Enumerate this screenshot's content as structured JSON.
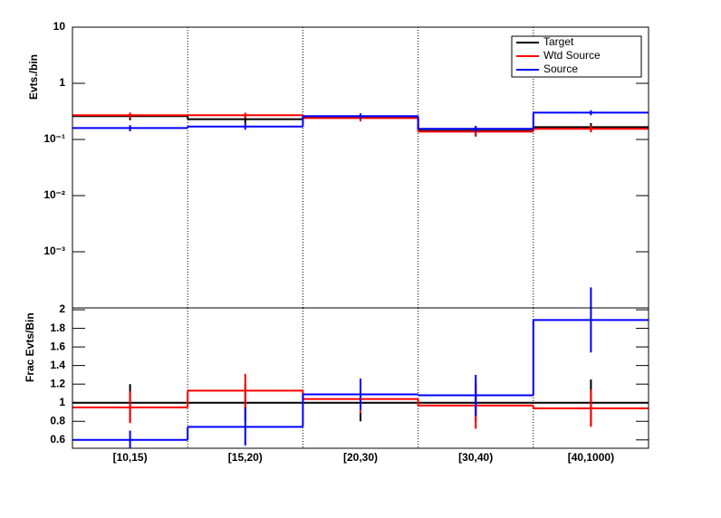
{
  "chart_data": [
    {
      "type": "step",
      "ylabel": "Evts./bin",
      "log_scale": true,
      "ylim": [
        0.0001,
        10
      ],
      "yticks": [
        {
          "value": 0.001,
          "label": "10⁻³"
        },
        {
          "value": 0.01,
          "label": "10⁻²"
        },
        {
          "value": 0.1,
          "label": "10⁻¹"
        },
        1,
        10
      ],
      "legend": "top-right",
      "grid": "x",
      "series": [
        {
          "name": "Target",
          "color": "#000000",
          "values": [
            0.26,
            0.23,
            0.25,
            0.143,
            0.166
          ],
          "errors": [
            0.04,
            0.04,
            0.04,
            0.03,
            0.03
          ]
        },
        {
          "name": "Wtd Source",
          "color": "#ff0000",
          "values": [
            0.27,
            0.27,
            0.24,
            0.138,
            0.155
          ],
          "errors": [
            0.03,
            0.03,
            0.03,
            0.02,
            0.02
          ]
        },
        {
          "name": "Source",
          "color": "#0000ff",
          "values": [
            0.16,
            0.17,
            0.26,
            0.155,
            0.3
          ],
          "errors": [
            0.02,
            0.02,
            0.03,
            0.02,
            0.03
          ]
        }
      ]
    },
    {
      "type": "step",
      "ylabel": "Frac Evts/Bin",
      "log_scale": false,
      "categories": [
        "[10,15)",
        "[15,20)",
        "[20,30)",
        "[30,40)",
        "[40,1000)"
      ],
      "ylim": [
        0.51,
        2.02
      ],
      "yticks": [
        0.6,
        0.8,
        1,
        1.2,
        1.4,
        1.6,
        1.8,
        2
      ],
      "grid": "x",
      "series": [
        {
          "color": "#000000",
          "values": [
            1,
            1,
            1,
            1,
            1
          ],
          "errors": [
            0.2,
            0.2,
            0.2,
            0.2,
            0.25
          ]
        },
        {
          "color": "#ff0000",
          "values": [
            0.95,
            1.13,
            1.04,
            0.97,
            0.94
          ],
          "errors": [
            0.17,
            0.18,
            0.15,
            0.25,
            0.2
          ]
        },
        {
          "color": "#0000ff",
          "values": [
            0.6,
            0.74,
            1.09,
            1.08,
            1.89
          ],
          "errors": [
            0.1,
            0.2,
            0.17,
            0.22,
            0.35
          ]
        }
      ]
    }
  ]
}
